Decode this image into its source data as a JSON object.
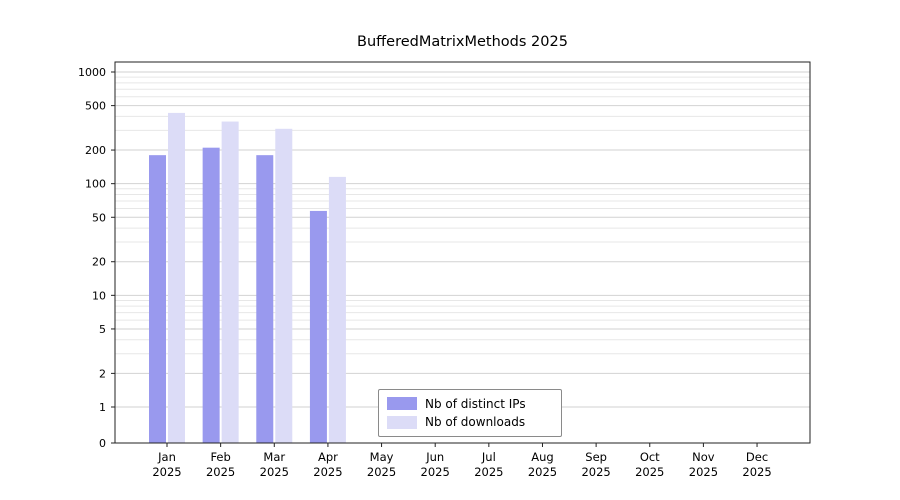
{
  "chart_data": {
    "type": "bar",
    "title": "BufferedMatrixMethods 2025",
    "year_label": "2025",
    "months": [
      "Jan",
      "Feb",
      "Mar",
      "Apr",
      "May",
      "Jun",
      "Jul",
      "Aug",
      "Sep",
      "Oct",
      "Nov",
      "Dec"
    ],
    "series": [
      {
        "name": "Nb of distinct IPs",
        "color": "#9999ee",
        "values": [
          180,
          210,
          180,
          57,
          0,
          0,
          0,
          0,
          0,
          0,
          0,
          0
        ]
      },
      {
        "name": "Nb of downloads",
        "color": "#dcdcf7",
        "values": [
          430,
          360,
          310,
          115,
          0,
          0,
          0,
          0,
          0,
          0,
          0,
          0
        ]
      }
    ],
    "yticks": [
      0,
      1,
      2,
      5,
      10,
      20,
      50,
      100,
      200,
      500,
      1000
    ],
    "ylim": [
      0,
      1000
    ],
    "scale": "symlog",
    "xlabel": "",
    "ylabel": "",
    "grid": true,
    "legend_position": "bottom-center",
    "colors": {
      "axis": "#222222",
      "major_grid": "#d2d2d2",
      "minor_grid": "#e7e7e7",
      "text": "#000000",
      "background": "#ffffff"
    }
  }
}
